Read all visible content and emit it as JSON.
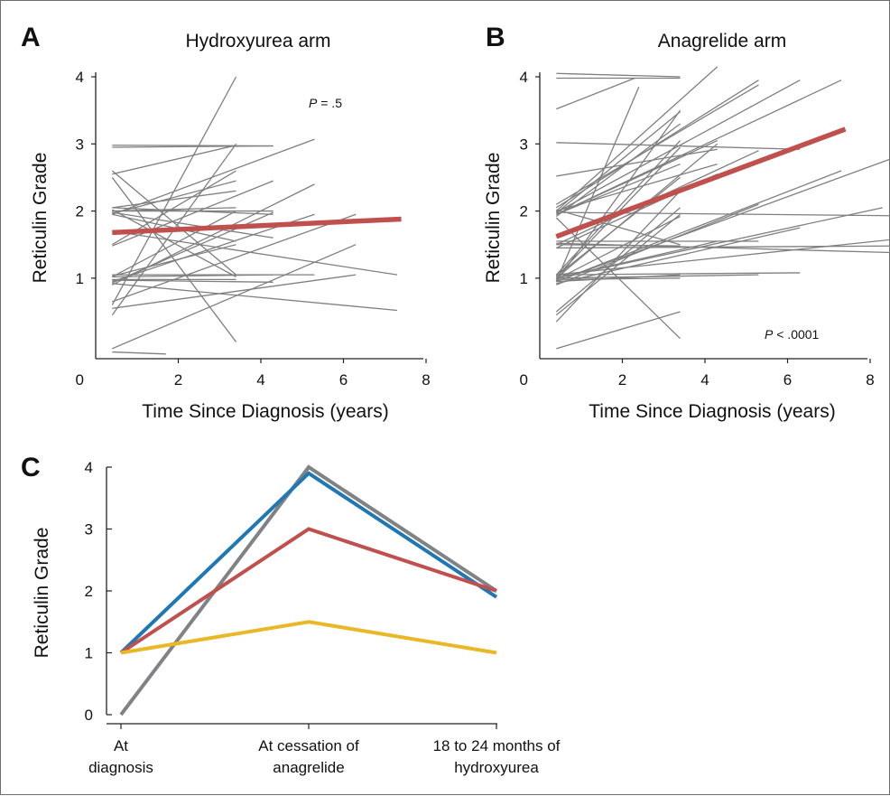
{
  "chart_data": [
    {
      "panel": "A",
      "type": "line",
      "title": "Hydroxyurea arm",
      "xlabel": "Time Since Diagnosis (years)",
      "ylabel": "Reticulin Grade",
      "xticks": [
        "0",
        "2",
        "4",
        "6",
        "8"
      ],
      "yticks": [
        "1",
        "2",
        "3",
        "4"
      ],
      "xlim": [
        0,
        8
      ],
      "ylim": [
        -0.2,
        4
      ],
      "annotation": {
        "italic": "P",
        "rest": " = .5"
      },
      "trend": {
        "color": "#c0504d",
        "x": [
          0.4,
          7.4
        ],
        "y": [
          1.68,
          1.88
        ]
      },
      "series": [
        {
          "x": [
            0.4,
            3.4
          ],
          "y": [
            2.0,
            2.05
          ]
        },
        {
          "x": [
            0.4,
            3.4
          ],
          "y": [
            1.95,
            1.55
          ]
        },
        {
          "x": [
            0.4,
            4.3
          ],
          "y": [
            2.98,
            2.97
          ]
        },
        {
          "x": [
            0.4,
            4.3
          ],
          "y": [
            2.95,
            2.97
          ]
        },
        {
          "x": [
            0.4,
            4.3
          ],
          "y": [
            2.05,
            1.95
          ]
        },
        {
          "x": [
            0.4,
            4.3
          ],
          "y": [
            2.0,
            2.0
          ]
        },
        {
          "x": [
            0.4,
            4.3
          ],
          "y": [
            1.02,
            1.05
          ]
        },
        {
          "x": [
            0.4,
            4.3
          ],
          "y": [
            0.97,
            0.94
          ]
        },
        {
          "x": [
            0.4,
            4.3
          ],
          "y": [
            0.93,
            1.98
          ]
        },
        {
          "x": [
            0.4,
            5.3
          ],
          "y": [
            1.05,
            1.05
          ]
        },
        {
          "x": [
            0.4,
            5.3
          ],
          "y": [
            0.9,
            2.4
          ]
        },
        {
          "x": [
            0.4,
            3.4
          ],
          "y": [
            2.55,
            2.98
          ]
        },
        {
          "x": [
            0.4,
            3.4
          ],
          "y": [
            2.6,
            1.05
          ]
        },
        {
          "x": [
            0.4,
            3.4
          ],
          "y": [
            0.6,
            4.0
          ]
        },
        {
          "x": [
            0.4,
            3.4
          ],
          "y": [
            0.45,
            3.0
          ]
        },
        {
          "x": [
            0.4,
            3.4
          ],
          "y": [
            2.5,
            0.05
          ]
        },
        {
          "x": [
            0.4,
            3.4
          ],
          "y": [
            1.5,
            2.6
          ]
        },
        {
          "x": [
            0.4,
            4.3
          ],
          "y": [
            1.48,
            2.45
          ]
        },
        {
          "x": [
            0.4,
            4.3
          ],
          "y": [
            1.98,
            1.6
          ]
        },
        {
          "x": [
            0.4,
            5.3
          ],
          "y": [
            1.95,
            3.07
          ]
        },
        {
          "x": [
            0.4,
            5.3
          ],
          "y": [
            0.95,
            1.95
          ]
        },
        {
          "x": [
            0.4,
            6.3
          ],
          "y": [
            0.65,
            1.95
          ]
        },
        {
          "x": [
            0.4,
            6.3
          ],
          "y": [
            -0.05,
            1.5
          ]
        },
        {
          "x": [
            0.4,
            6.3
          ],
          "y": [
            0.55,
            1.05
          ]
        },
        {
          "x": [
            0.4,
            7.3
          ],
          "y": [
            0.92,
            0.52
          ]
        },
        {
          "x": [
            0.4,
            7.3
          ],
          "y": [
            1.7,
            1.05
          ]
        },
        {
          "x": [
            0.4,
            3.4
          ],
          "y": [
            1.02,
            2.0
          ]
        },
        {
          "x": [
            0.4,
            3.4
          ],
          "y": [
            2.02,
            1.02
          ]
        },
        {
          "x": [
            0.4,
            3.4
          ],
          "y": [
            2.05,
            2.3
          ]
        },
        {
          "x": [
            0.4,
            3.4
          ],
          "y": [
            0.98,
            0.98
          ]
        },
        {
          "x": [
            0.4,
            1.7
          ],
          "y": [
            -0.1,
            -0.13
          ]
        },
        {
          "x": [
            0.4,
            3.4
          ],
          "y": [
            1.03,
            1.5
          ]
        },
        {
          "x": [
            0.4,
            3.4
          ],
          "y": [
            1.96,
            2.45
          ]
        }
      ]
    },
    {
      "panel": "B",
      "type": "line",
      "title": "Anagrelide arm",
      "xlabel": "Time Since Diagnosis (years)",
      "ylabel": "Reticulin Grade",
      "xticks": [
        "0",
        "2",
        "4",
        "6",
        "8"
      ],
      "yticks": [
        "1",
        "2",
        "3",
        "4"
      ],
      "xlim": [
        0,
        8
      ],
      "ylim": [
        -0.2,
        4
      ],
      "annotation": {
        "italic": "P",
        "rest": " < .0001"
      },
      "trend": {
        "color": "#c0504d",
        "x": [
          0.4,
          7.4
        ],
        "y": [
          1.62,
          3.22
        ]
      },
      "series": [
        {
          "x": [
            0.4,
            3.4
          ],
          "y": [
            4.05,
            4.0
          ]
        },
        {
          "x": [
            0.4,
            3.4
          ],
          "y": [
            3.98,
            3.98
          ]
        },
        {
          "x": [
            0.4,
            2.3
          ],
          "y": [
            3.52,
            3.98
          ]
        },
        {
          "x": [
            0.4,
            6.3
          ],
          "y": [
            3.02,
            2.92
          ]
        },
        {
          "x": [
            0.4,
            4.3
          ],
          "y": [
            2.52,
            2.92
          ]
        },
        {
          "x": [
            0.4,
            5.3
          ],
          "y": [
            2.1,
            3.88
          ]
        },
        {
          "x": [
            0.4,
            5.3
          ],
          "y": [
            2.05,
            3.95
          ]
        },
        {
          "x": [
            0.4,
            4.3
          ],
          "y": [
            2.0,
            4.15
          ]
        },
        {
          "x": [
            0.4,
            6.3
          ],
          "y": [
            1.98,
            3.95
          ]
        },
        {
          "x": [
            0.4,
            7.3
          ],
          "y": [
            1.95,
            3.95
          ]
        },
        {
          "x": [
            0.4,
            3.4
          ],
          "y": [
            1.92,
            3.3
          ]
        },
        {
          "x": [
            0.4,
            3.4
          ],
          "y": [
            1.9,
            0.1
          ]
        },
        {
          "x": [
            0.4,
            8.6
          ],
          "y": [
            1.98,
            1.93
          ]
        },
        {
          "x": [
            0.4,
            8.6
          ],
          "y": [
            1.52,
            1.38
          ]
        },
        {
          "x": [
            0.4,
            8.6
          ],
          "y": [
            1.45,
            1.48
          ]
        },
        {
          "x": [
            0.4,
            5.3
          ],
          "y": [
            1.55,
            1.55
          ]
        },
        {
          "x": [
            0.4,
            6.3
          ],
          "y": [
            1.05,
            1.08
          ]
        },
        {
          "x": [
            0.4,
            5.3
          ],
          "y": [
            1.0,
            1.05
          ]
        },
        {
          "x": [
            0.4,
            3.4
          ],
          "y": [
            0.98,
            1.0
          ]
        },
        {
          "x": [
            0.4,
            3.4
          ],
          "y": [
            0.95,
            1.05
          ]
        },
        {
          "x": [
            0.4,
            3.4
          ],
          "y": [
            1.05,
            3.05
          ]
        },
        {
          "x": [
            0.4,
            3.4
          ],
          "y": [
            0.95,
            3.5
          ]
        },
        {
          "x": [
            0.4,
            3.4
          ],
          "y": [
            1.02,
            2.95
          ]
        },
        {
          "x": [
            0.4,
            2.4
          ],
          "y": [
            0.95,
            3.85
          ]
        },
        {
          "x": [
            0.4,
            3.4
          ],
          "y": [
            0.5,
            2.05
          ]
        },
        {
          "x": [
            0.4,
            3.4
          ],
          "y": [
            0.45,
            1.95
          ]
        },
        {
          "x": [
            0.4,
            3.4
          ],
          "y": [
            -0.05,
            0.5
          ]
        },
        {
          "x": [
            0.4,
            3.4
          ],
          "y": [
            0.35,
            2.3
          ]
        },
        {
          "x": [
            0.4,
            4.3
          ],
          "y": [
            1.0,
            3.0
          ]
        },
        {
          "x": [
            0.4,
            4.3
          ],
          "y": [
            1.45,
            2.55
          ]
        },
        {
          "x": [
            0.4,
            4.3
          ],
          "y": [
            2.0,
            2.7
          ]
        },
        {
          "x": [
            0.4,
            4.3
          ],
          "y": [
            1.0,
            1.55
          ]
        },
        {
          "x": [
            0.4,
            5.3
          ],
          "y": [
            0.9,
            2.1
          ]
        },
        {
          "x": [
            0.4,
            5.3
          ],
          "y": [
            1.5,
            2.9
          ]
        },
        {
          "x": [
            0.4,
            6.3
          ],
          "y": [
            0.92,
            1.75
          ]
        },
        {
          "x": [
            0.4,
            7.3
          ],
          "y": [
            0.95,
            2.6
          ]
        },
        {
          "x": [
            0.4,
            8.3
          ],
          "y": [
            1.0,
            2.05
          ]
        },
        {
          "x": [
            0.4,
            8.6
          ],
          "y": [
            0.95,
            2.8
          ]
        },
        {
          "x": [
            0.4,
            8.6
          ],
          "y": [
            1.05,
            1.58
          ]
        },
        {
          "x": [
            0.4,
            3.4
          ],
          "y": [
            1.95,
            2.7
          ]
        },
        {
          "x": [
            0.4,
            3.4
          ],
          "y": [
            2.02,
            1.5
          ]
        },
        {
          "x": [
            0.4,
            3.4
          ],
          "y": [
            1.03,
            2.5
          ]
        },
        {
          "x": [
            0.4,
            4.3
          ],
          "y": [
            1.95,
            3.05
          ]
        },
        {
          "x": [
            0.4,
            3.4
          ],
          "y": [
            1.5,
            1.48
          ]
        },
        {
          "x": [
            0.4,
            3.4
          ],
          "y": [
            0.98,
            1.92
          ]
        },
        {
          "x": [
            0.4,
            3.4
          ],
          "y": [
            1.97,
            3.48
          ]
        }
      ]
    },
    {
      "panel": "C",
      "type": "line",
      "title": "",
      "xlabel": "",
      "ylabel": "Reticulin Grade",
      "categories": [
        [
          "At",
          "diagnosis"
        ],
        [
          "At cessation of",
          "anagrelide"
        ],
        [
          "18 to 24 months of",
          "hydroxyurea"
        ]
      ],
      "yticks": [
        "0",
        "1",
        "2",
        "3",
        "4"
      ],
      "ylim": [
        0,
        4
      ],
      "series": [
        {
          "color": "#808285",
          "values": [
            0,
            4.0,
            2.0
          ]
        },
        {
          "color": "#1f77b4",
          "values": [
            1,
            3.9,
            1.9
          ]
        },
        {
          "color": "#c0504d",
          "values": [
            1,
            3.0,
            2.0
          ]
        },
        {
          "color": "#e8b826",
          "values": [
            1,
            1.5,
            1.0
          ]
        }
      ]
    }
  ]
}
